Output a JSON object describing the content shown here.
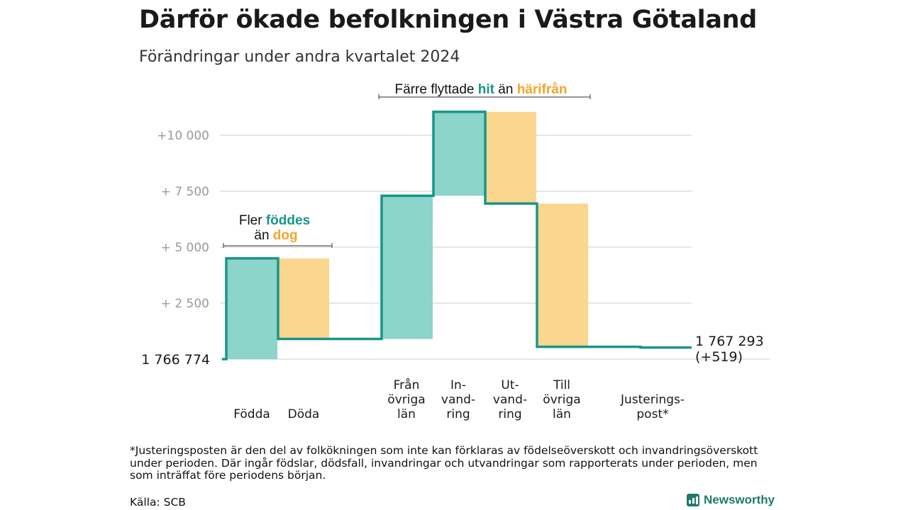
{
  "title": "Därför ökade befolkningen i Västra Götaland",
  "subtitle": "Förändringar under andra kvartalet 2024",
  "footnote": "*Justeringsposten är den del av folkökningen som inte kan förklaras av födelseöverskott och invandringsöverskott under perioden. Där ingår födslar, dödsfall, invandringar och utvandringar som rapporterats under perioden, men som inträffat före periodens början.",
  "source": "Källa: SCB",
  "logo": "Newsworthy",
  "colors": {
    "increase": "#8dd4cb",
    "decrease": "#fad68f",
    "line": "#17968a",
    "teal_text": "#17968a",
    "orange_text": "#f1a62a",
    "grid": "#dddddd",
    "axis_text": "#999999"
  },
  "chart_data": {
    "type": "waterfall",
    "baseline_label": "1  766  774",
    "baseline_value": 1766774,
    "y_ticks": [
      {
        "value": 2500,
        "label": "+  2  500"
      },
      {
        "value": 5000,
        "label": "+  5  000"
      },
      {
        "value": 7500,
        "label": "+  7  500"
      },
      {
        "value": 10000,
        "label": "+10    000"
      }
    ],
    "ylim": [
      0,
      11500
    ],
    "steps": [
      {
        "label": [
          "Födda"
        ],
        "kind": "increase",
        "start": 0,
        "end": 4500
      },
      {
        "label": [
          "Döda"
        ],
        "kind": "decrease",
        "start": 4500,
        "end": 900
      },
      {
        "label": [
          "Från",
          "övriga",
          "län"
        ],
        "kind": "increase",
        "start": 900,
        "end": 7300
      },
      {
        "label": [
          "In-",
          "vand-",
          "ring"
        ],
        "kind": "increase",
        "start": 7300,
        "end": 11050
      },
      {
        "label": [
          "Ut-",
          "vand-",
          "ring"
        ],
        "kind": "decrease",
        "start": 11050,
        "end": 6950
      },
      {
        "label": [
          "Till",
          "övriga",
          "län"
        ],
        "kind": "decrease",
        "start": 6950,
        "end": 550
      },
      {
        "label": [
          "Justerings-",
          "post*"
        ],
        "kind": "decrease",
        "start": 550,
        "end": 519
      }
    ],
    "end_value_label": "1 767 293",
    "end_change_label": "(+519)",
    "annotations": [
      {
        "group": "births",
        "parts": [
          {
            "text": "Fler ",
            "color": "default"
          },
          {
            "text": "föddes",
            "color": "teal"
          }
        ],
        "parts2": [
          {
            "text": "än ",
            "color": "default"
          },
          {
            "text": "dog",
            "color": "orange"
          }
        ]
      },
      {
        "group": "moves",
        "parts": [
          {
            "text": "Färre flyttade ",
            "color": "default"
          },
          {
            "text": "hit",
            "color": "teal"
          },
          {
            "text": " än ",
            "color": "default"
          },
          {
            "text": "härifrån",
            "color": "orange"
          }
        ]
      }
    ]
  }
}
